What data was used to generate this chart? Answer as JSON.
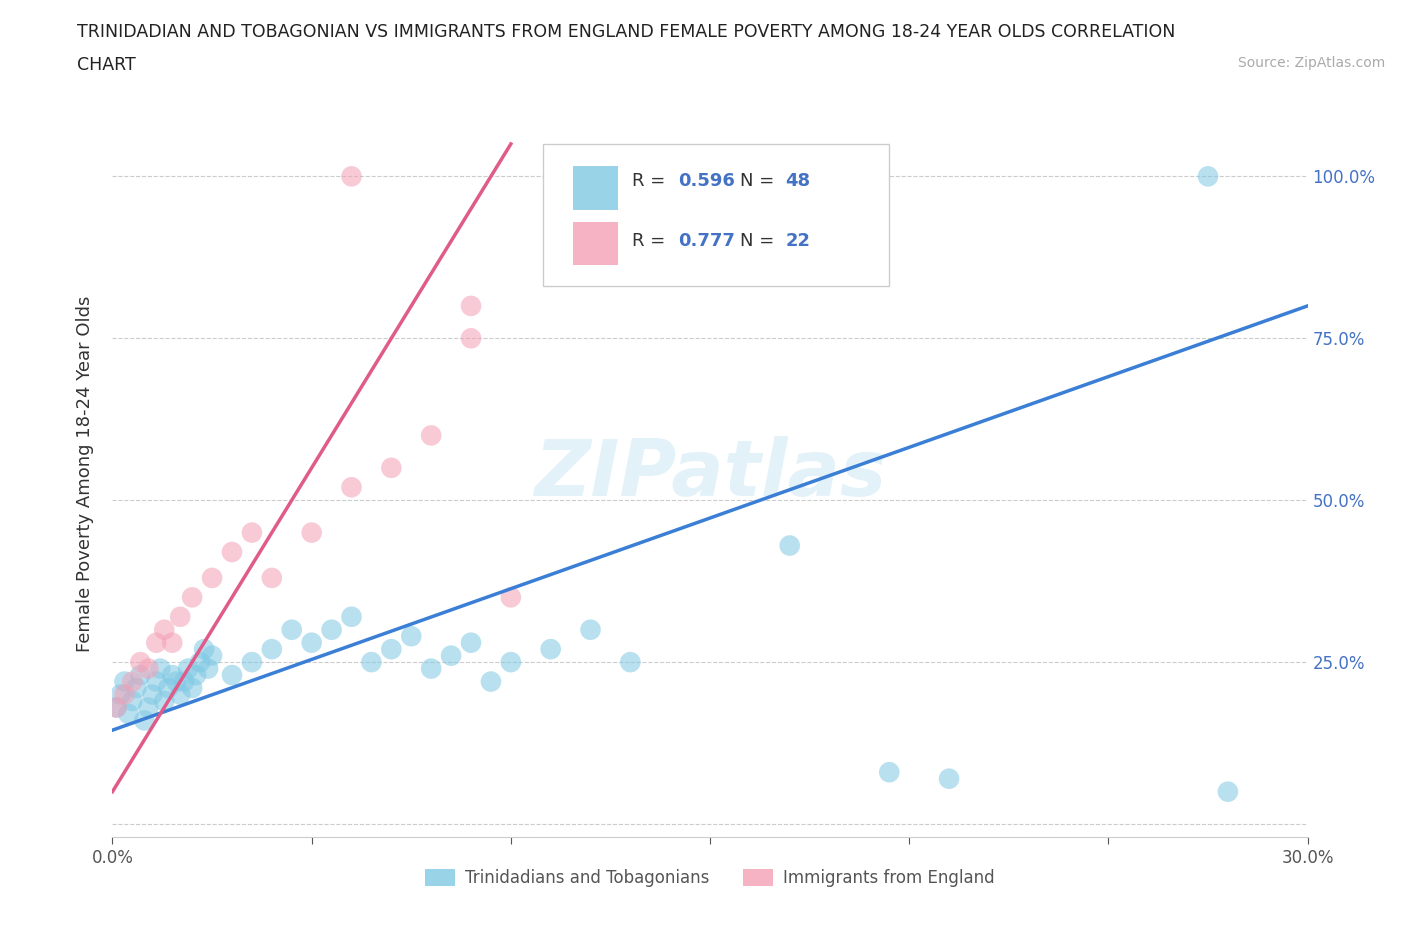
{
  "title_line1": "TRINIDADIAN AND TOBAGONIAN VS IMMIGRANTS FROM ENGLAND FEMALE POVERTY AMONG 18-24 YEAR OLDS CORRELATION",
  "title_line2": "CHART",
  "source_text": "Source: ZipAtlas.com",
  "ylabel": "Female Poverty Among 18-24 Year Olds",
  "xlim": [
    0.0,
    0.3
  ],
  "ylim": [
    -0.02,
    1.1
  ],
  "xticks": [
    0.0,
    0.05,
    0.1,
    0.15,
    0.2,
    0.25,
    0.3
  ],
  "xticklabels": [
    "0.0%",
    "",
    "",
    "",
    "",
    "",
    "30.0%"
  ],
  "ytick_positions": [
    0.0,
    0.25,
    0.5,
    0.75,
    1.0
  ],
  "yticklabels": [
    "",
    "25.0%",
    "50.0%",
    "75.0%",
    "100.0%"
  ],
  "blue_color": "#7ec8e3",
  "pink_color": "#f4a0b5",
  "blue_line_color": "#3a7fd5",
  "pink_line_color": "#e05a8a",
  "blue_R": 0.596,
  "blue_N": 48,
  "pink_R": 0.777,
  "pink_N": 22,
  "watermark": "ZIPatlas",
  "legend_label_blue": "Trinidadians and Tobagonians",
  "legend_label_pink": "Immigrants from England",
  "blue_scatter_x": [
    0.001,
    0.002,
    0.003,
    0.004,
    0.005,
    0.006,
    0.007,
    0.008,
    0.009,
    0.01,
    0.011,
    0.012,
    0.013,
    0.014,
    0.015,
    0.016,
    0.017,
    0.018,
    0.019,
    0.02,
    0.021,
    0.022,
    0.023,
    0.024,
    0.025,
    0.03,
    0.035,
    0.04,
    0.045,
    0.05,
    0.055,
    0.06,
    0.065,
    0.07,
    0.075,
    0.08,
    0.085,
    0.09,
    0.095,
    0.1,
    0.11,
    0.12,
    0.13,
    0.17,
    0.195,
    0.21,
    0.275,
    0.28
  ],
  "blue_scatter_y": [
    0.18,
    0.2,
    0.22,
    0.17,
    0.19,
    0.21,
    0.23,
    0.16,
    0.18,
    0.2,
    0.22,
    0.24,
    0.19,
    0.21,
    0.23,
    0.22,
    0.2,
    0.22,
    0.24,
    0.21,
    0.23,
    0.25,
    0.27,
    0.24,
    0.26,
    0.23,
    0.25,
    0.27,
    0.3,
    0.28,
    0.3,
    0.32,
    0.25,
    0.27,
    0.29,
    0.24,
    0.26,
    0.28,
    0.22,
    0.25,
    0.27,
    0.3,
    0.25,
    0.43,
    0.08,
    0.07,
    1.0,
    0.05
  ],
  "pink_scatter_x": [
    0.001,
    0.003,
    0.005,
    0.007,
    0.009,
    0.011,
    0.013,
    0.015,
    0.017,
    0.02,
    0.025,
    0.03,
    0.035,
    0.04,
    0.05,
    0.06,
    0.07,
    0.08,
    0.09,
    0.1,
    0.06,
    0.09
  ],
  "pink_scatter_y": [
    0.18,
    0.2,
    0.22,
    0.25,
    0.24,
    0.28,
    0.3,
    0.28,
    0.32,
    0.35,
    0.38,
    0.42,
    0.45,
    0.38,
    0.45,
    0.52,
    0.55,
    0.6,
    0.75,
    0.35,
    1.0,
    0.8
  ],
  "blue_line_x0": 0.0,
  "blue_line_y0": 0.145,
  "blue_line_x1": 0.3,
  "blue_line_y1": 0.8,
  "pink_line_x0": 0.0,
  "pink_line_y0": 0.05,
  "pink_line_x1": 0.1,
  "pink_line_y1": 1.05
}
